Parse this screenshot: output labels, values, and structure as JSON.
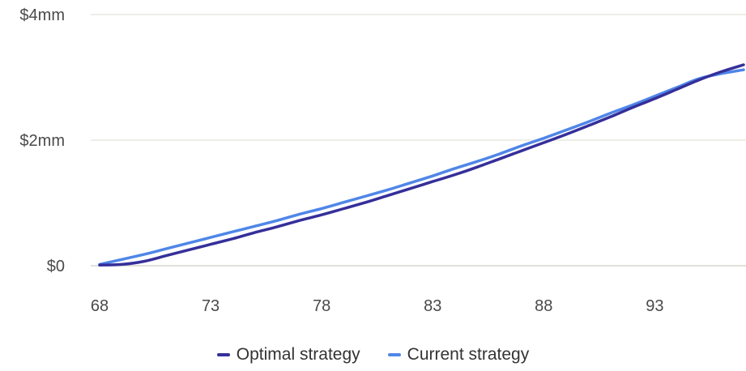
{
  "chart_data": {
    "type": "line",
    "title": "",
    "xlabel": "",
    "ylabel": "",
    "xlim": [
      68,
      97
    ],
    "ylim": [
      0,
      4000000
    ],
    "x_ticks": [
      68,
      73,
      78,
      83,
      88,
      93
    ],
    "x_tick_labels": [
      "68",
      "73",
      "78",
      "83",
      "88",
      "93"
    ],
    "y_ticks": [
      0,
      2000000,
      4000000
    ],
    "y_tick_labels": [
      "$0",
      "$2mm",
      "$4mm"
    ],
    "grid": "horizontal",
    "legend_position": "bottom",
    "x": [
      68,
      69,
      70,
      71,
      72,
      73,
      74,
      75,
      76,
      77,
      78,
      79,
      80,
      81,
      82,
      83,
      84,
      85,
      86,
      87,
      88,
      89,
      90,
      91,
      92,
      93,
      94,
      95,
      96,
      97
    ],
    "series": [
      {
        "name": "Optimal strategy",
        "color": "#352f9a",
        "values": [
          10000,
          20000,
          70000,
          160000,
          250000,
          340000,
          430000,
          530000,
          620000,
          720000,
          810000,
          910000,
          1010000,
          1120000,
          1230000,
          1340000,
          1450000,
          1570000,
          1700000,
          1830000,
          1960000,
          2090000,
          2230000,
          2370000,
          2520000,
          2660000,
          2810000,
          2960000,
          3090000,
          3200000
        ]
      },
      {
        "name": "Current strategy",
        "color": "#4f86e8",
        "values": [
          20000,
          100000,
          180000,
          270000,
          360000,
          450000,
          540000,
          630000,
          720000,
          820000,
          910000,
          1010000,
          1110000,
          1210000,
          1320000,
          1430000,
          1550000,
          1660000,
          1780000,
          1910000,
          2030000,
          2160000,
          2290000,
          2430000,
          2560000,
          2700000,
          2840000,
          2980000,
          3060000,
          3120000
        ]
      }
    ]
  },
  "legend": {
    "items": [
      {
        "label": "Optimal strategy",
        "color": "#352f9a"
      },
      {
        "label": "Current strategy",
        "color": "#4f86e8"
      }
    ]
  }
}
